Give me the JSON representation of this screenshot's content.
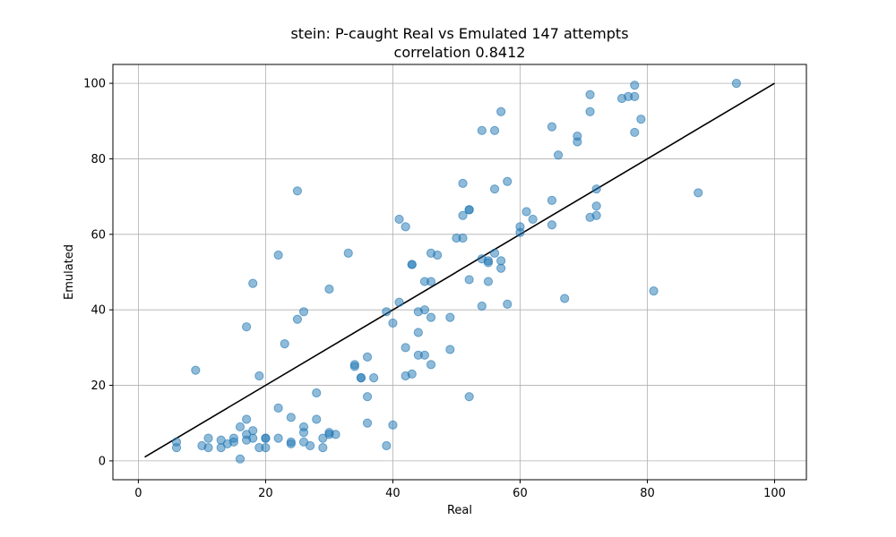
{
  "chart_data": {
    "type": "scatter",
    "title_line1": "stein: P-caught Real vs Emulated 147 attempts",
    "title_line2": "correlation 0.8412",
    "xlabel": "Real",
    "ylabel": "Emulated",
    "xlim": [
      -4,
      105
    ],
    "ylim": [
      -5,
      105
    ],
    "xticks": [
      0,
      20,
      40,
      60,
      80,
      100
    ],
    "yticks": [
      0,
      20,
      40,
      60,
      80,
      100
    ],
    "grid": true,
    "point_color": "#1f77b4",
    "line_color": "#000000",
    "reference_line": {
      "x": [
        1,
        100
      ],
      "y": [
        1,
        100
      ]
    },
    "points": [
      [
        6,
        5
      ],
      [
        6,
        3.5
      ],
      [
        9,
        24
      ],
      [
        10,
        4
      ],
      [
        11,
        6
      ],
      [
        11,
        3.5
      ],
      [
        13,
        5.5
      ],
      [
        13,
        3.5
      ],
      [
        14,
        4.5
      ],
      [
        15,
        6
      ],
      [
        15,
        5
      ],
      [
        16,
        9
      ],
      [
        16,
        0.5
      ],
      [
        17,
        11
      ],
      [
        17,
        7
      ],
      [
        17,
        5.5
      ],
      [
        17,
        35.5
      ],
      [
        18,
        8
      ],
      [
        18,
        6
      ],
      [
        18,
        47
      ],
      [
        19,
        3.5
      ],
      [
        19,
        22.5
      ],
      [
        20,
        6
      ],
      [
        20,
        6
      ],
      [
        20,
        3.5
      ],
      [
        22,
        14
      ],
      [
        22,
        6
      ],
      [
        22,
        54.5
      ],
      [
        23,
        31
      ],
      [
        24,
        11.5
      ],
      [
        24,
        5
      ],
      [
        24,
        4.5
      ],
      [
        25,
        71.5
      ],
      [
        25,
        37.5
      ],
      [
        26,
        39.5
      ],
      [
        26,
        9
      ],
      [
        26,
        7.5
      ],
      [
        26,
        5
      ],
      [
        27,
        4
      ],
      [
        28,
        18
      ],
      [
        28,
        11
      ],
      [
        29,
        6
      ],
      [
        29,
        3.5
      ],
      [
        30,
        7.5
      ],
      [
        30,
        7
      ],
      [
        30,
        45.5
      ],
      [
        31,
        7
      ],
      [
        33,
        55
      ],
      [
        34,
        25.5
      ],
      [
        34,
        25
      ],
      [
        35,
        22
      ],
      [
        35,
        22
      ],
      [
        36,
        27.5
      ],
      [
        36,
        17
      ],
      [
        36,
        10
      ],
      [
        37,
        22
      ],
      [
        39,
        39.5
      ],
      [
        39,
        4
      ],
      [
        40,
        36.5
      ],
      [
        40,
        9.5
      ],
      [
        41,
        64
      ],
      [
        41,
        42
      ],
      [
        42,
        62
      ],
      [
        42,
        30
      ],
      [
        42,
        22.5
      ],
      [
        43,
        52
      ],
      [
        43,
        52
      ],
      [
        43,
        23
      ],
      [
        44,
        39.5
      ],
      [
        44,
        34
      ],
      [
        44,
        28
      ],
      [
        45,
        47.5
      ],
      [
        45,
        40
      ],
      [
        45,
        28
      ],
      [
        46,
        55
      ],
      [
        46,
        47.5
      ],
      [
        46,
        38
      ],
      [
        46,
        25.5
      ],
      [
        47,
        54.5
      ],
      [
        49,
        38
      ],
      [
        49,
        29.5
      ],
      [
        50,
        59
      ],
      [
        51,
        73.5
      ],
      [
        51,
        65
      ],
      [
        51,
        59
      ],
      [
        52,
        66.5
      ],
      [
        52,
        66.5
      ],
      [
        52,
        48
      ],
      [
        52,
        17
      ],
      [
        54,
        87.5
      ],
      [
        54,
        53.5
      ],
      [
        54,
        41
      ],
      [
        55,
        53
      ],
      [
        55,
        52.5
      ],
      [
        55,
        47.5
      ],
      [
        56,
        87.5
      ],
      [
        56,
        72
      ],
      [
        56,
        55
      ],
      [
        57,
        92.5
      ],
      [
        57,
        53
      ],
      [
        57,
        51
      ],
      [
        58,
        74
      ],
      [
        58,
        41.5
      ],
      [
        60,
        62
      ],
      [
        60,
        60.5
      ],
      [
        61,
        66
      ],
      [
        62,
        64
      ],
      [
        65,
        88.5
      ],
      [
        65,
        69
      ],
      [
        65,
        62.5
      ],
      [
        66,
        81
      ],
      [
        67,
        43
      ],
      [
        69,
        86
      ],
      [
        69,
        84.5
      ],
      [
        71,
        97
      ],
      [
        71,
        92.5
      ],
      [
        71,
        64.5
      ],
      [
        72,
        72
      ],
      [
        72,
        67.5
      ],
      [
        72,
        65
      ],
      [
        76,
        96
      ],
      [
        77,
        96.5
      ],
      [
        78,
        99.5
      ],
      [
        78,
        96.5
      ],
      [
        78,
        87
      ],
      [
        79,
        90.5
      ],
      [
        81,
        45
      ],
      [
        88,
        71
      ],
      [
        94,
        100
      ]
    ]
  }
}
